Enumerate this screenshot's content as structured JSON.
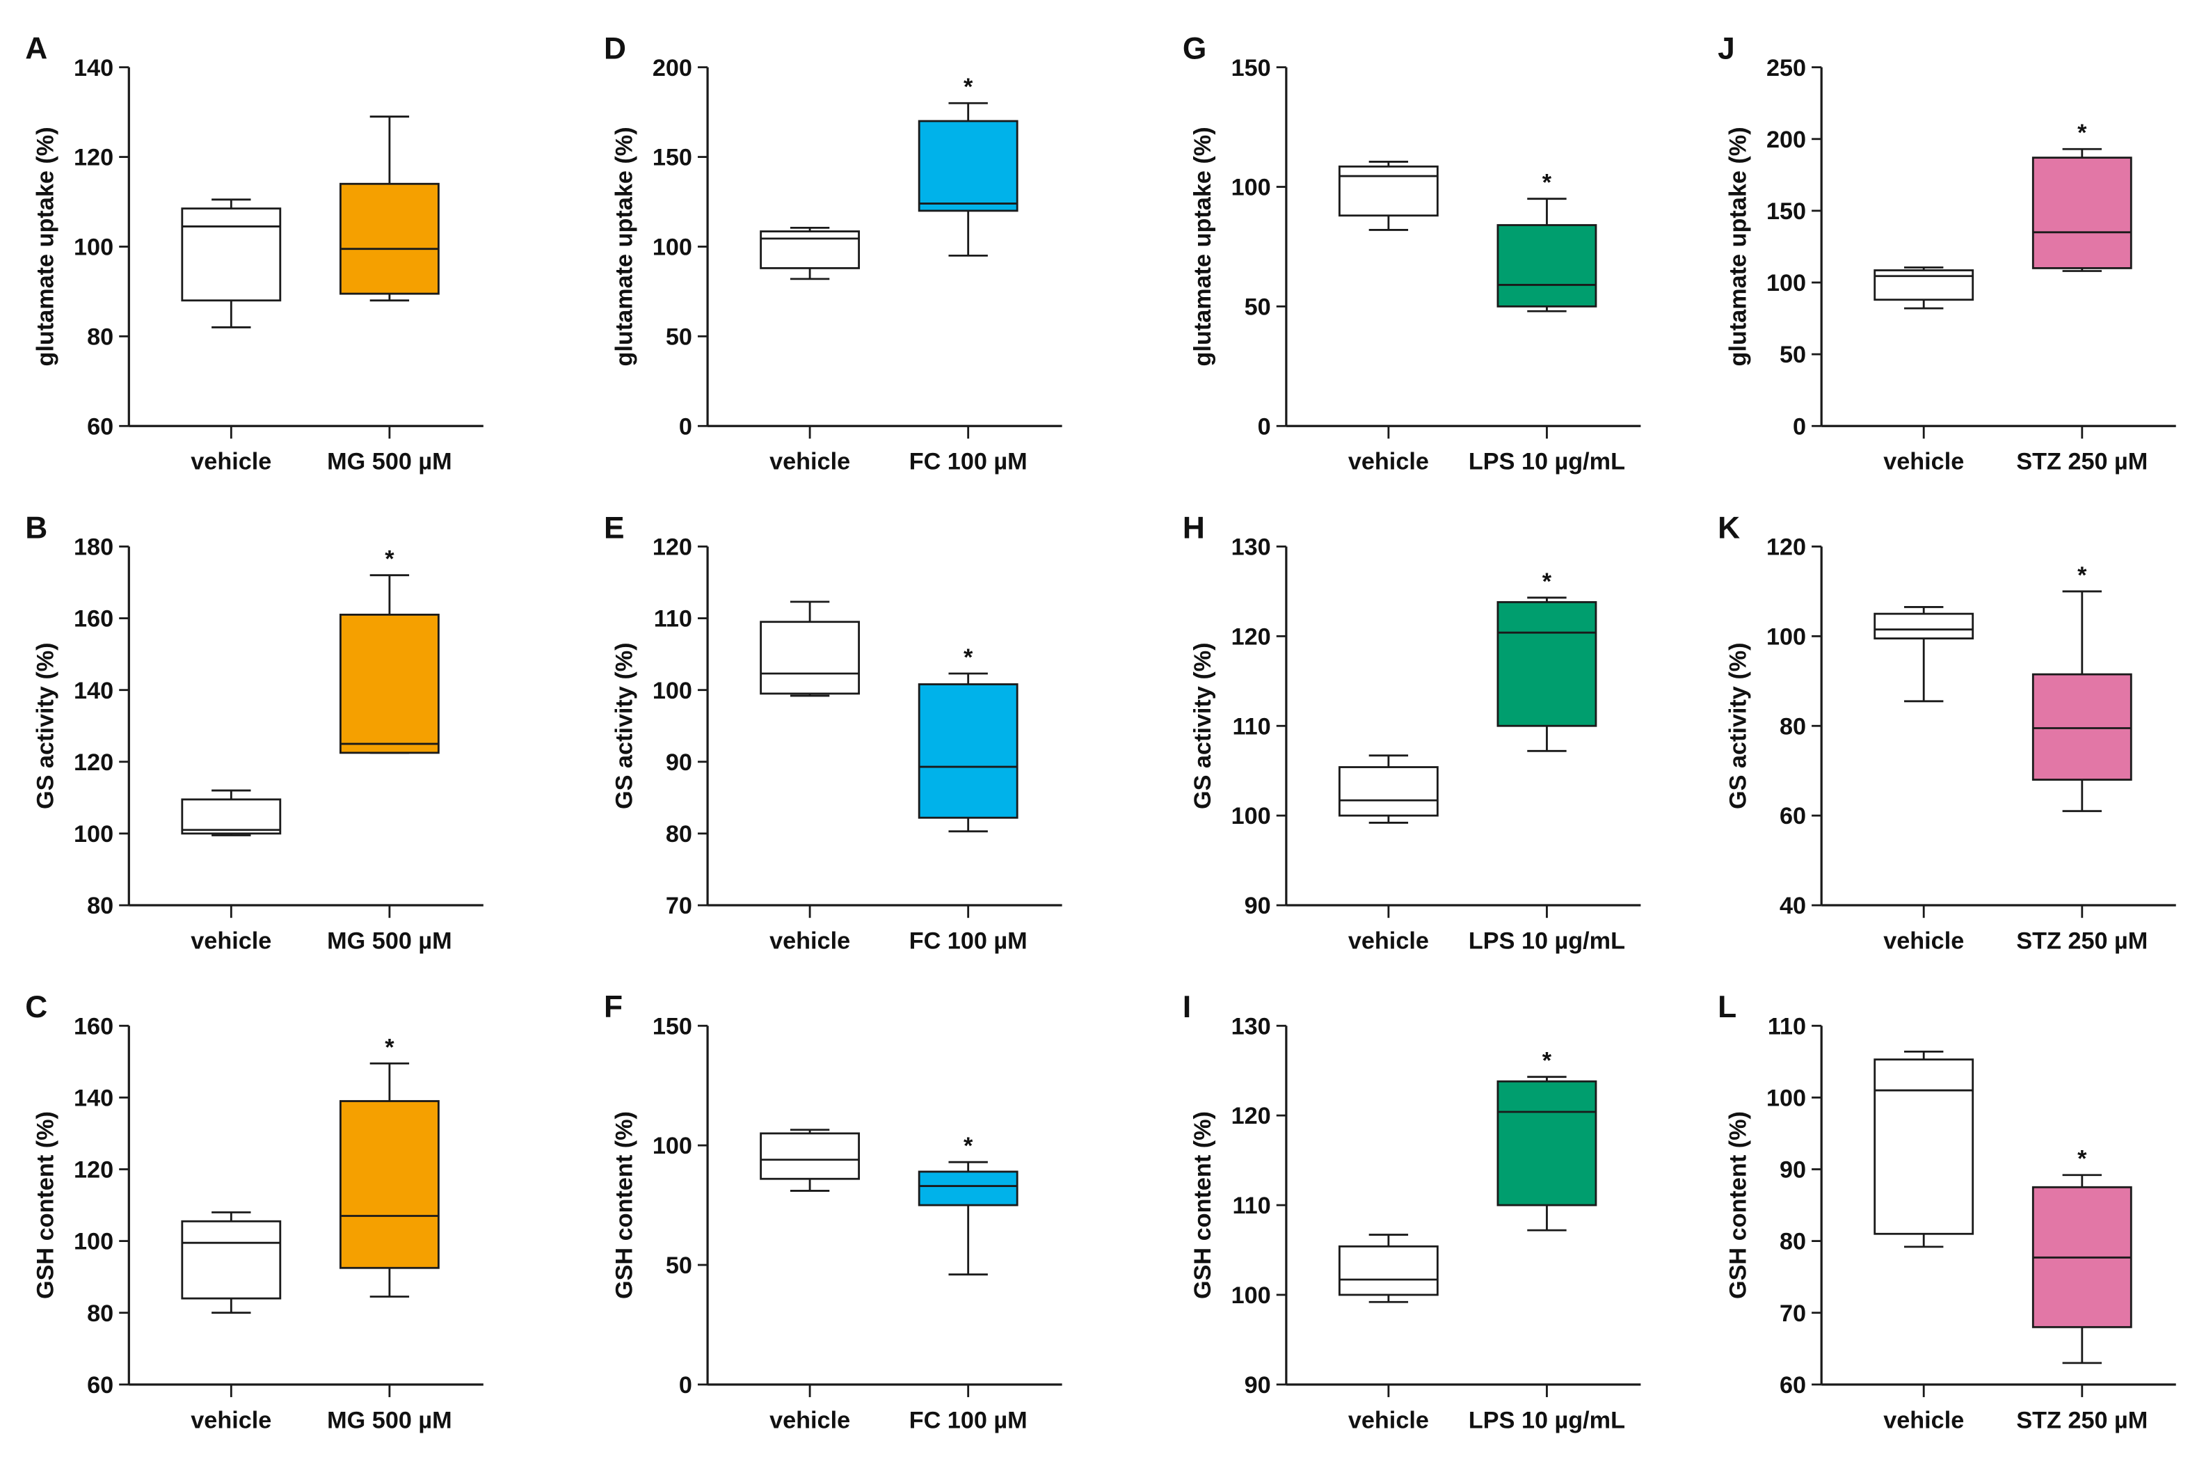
{
  "colors": {
    "MG": "#F5A000",
    "FC": "#00B2EA",
    "LPS": "#009E6E",
    "STZ": "#E277A6",
    "vehicle": "#FFFFFF",
    "line": "#1a1a1a"
  },
  "chart_data": [
    {
      "panel": "A",
      "type": "box",
      "ylabel": "glutamate uptake (%)",
      "ylim": [
        60,
        140
      ],
      "ticks": [
        60,
        80,
        100,
        120,
        140
      ],
      "categories": [
        "vehicle",
        "MG 500 µM"
      ],
      "color_key": "MG",
      "series": [
        {
          "name": "vehicle",
          "min": 82,
          "q1": 88,
          "median": 104.5,
          "q3": 108.5,
          "max": 110.5,
          "star": false
        },
        {
          "name": "MG 500 µM",
          "min": 88,
          "q1": 89.5,
          "median": 99.5,
          "q3": 114,
          "max": 129,
          "star": false
        }
      ]
    },
    {
      "panel": "B",
      "type": "box",
      "ylabel": "GS activity (%)",
      "ylim": [
        80,
        180
      ],
      "ticks": [
        80,
        100,
        120,
        140,
        160,
        180
      ],
      "categories": [
        "vehicle",
        "MG 500 µM"
      ],
      "color_key": "MG",
      "series": [
        {
          "name": "vehicle",
          "min": 99.5,
          "q1": 100,
          "median": 101,
          "q3": 109.5,
          "max": 112,
          "star": false
        },
        {
          "name": "MG 500 µM",
          "min": 122.5,
          "q1": 122.5,
          "median": 125,
          "q3": 161,
          "max": 172,
          "star": true
        }
      ]
    },
    {
      "panel": "C",
      "type": "box",
      "ylabel": "GSH content (%)",
      "ylim": [
        60,
        160
      ],
      "ticks": [
        60,
        80,
        100,
        120,
        140,
        160
      ],
      "categories": [
        "vehicle",
        "MG 500 µM"
      ],
      "color_key": "MG",
      "series": [
        {
          "name": "vehicle",
          "min": 80,
          "q1": 84,
          "median": 99.5,
          "q3": 105.5,
          "max": 108,
          "star": false
        },
        {
          "name": "MG 500 µM",
          "min": 84.5,
          "q1": 92.5,
          "median": 107,
          "q3": 139,
          "max": 149.5,
          "star": true
        }
      ]
    },
    {
      "panel": "D",
      "type": "box",
      "ylabel": "glutamate uptake (%)",
      "ylim": [
        0,
        200
      ],
      "ticks": [
        0,
        50,
        100,
        150,
        200
      ],
      "categories": [
        "vehicle",
        "FC 100 µM"
      ],
      "color_key": "FC",
      "series": [
        {
          "name": "vehicle",
          "min": 82,
          "q1": 88,
          "median": 104.5,
          "q3": 108.5,
          "max": 110.5,
          "star": false
        },
        {
          "name": "FC 100 µM",
          "min": 95,
          "q1": 120,
          "median": 124,
          "q3": 170,
          "max": 180,
          "star": true
        }
      ]
    },
    {
      "panel": "E",
      "type": "box",
      "ylabel": "GS activity (%)",
      "ylim": [
        70,
        120
      ],
      "ticks": [
        70,
        80,
        90,
        100,
        110,
        120
      ],
      "categories": [
        "vehicle",
        "FC 100 µM"
      ],
      "color_key": "FC",
      "series": [
        {
          "name": "vehicle",
          "min": 99.2,
          "q1": 99.5,
          "median": 102.3,
          "q3": 109.5,
          "max": 112.3,
          "star": false
        },
        {
          "name": "FC 100 µM",
          "min": 80.3,
          "q1": 82.2,
          "median": 89.3,
          "q3": 100.8,
          "max": 102.3,
          "star": true
        }
      ]
    },
    {
      "panel": "F",
      "type": "box",
      "ylabel": "GSH content (%)",
      "ylim": [
        0,
        150
      ],
      "ticks": [
        0,
        50,
        100,
        150
      ],
      "categories": [
        "vehicle",
        "FC 100 µM"
      ],
      "color_key": "FC",
      "series": [
        {
          "name": "vehicle",
          "min": 81,
          "q1": 86,
          "median": 94,
          "q3": 105,
          "max": 106.5,
          "star": false
        },
        {
          "name": "FC 100 µM",
          "min": 46,
          "q1": 75,
          "median": 83,
          "q3": 89,
          "max": 93,
          "star": true
        }
      ]
    },
    {
      "panel": "G",
      "type": "box",
      "ylabel": "glutamate uptake (%)",
      "ylim": [
        0,
        150
      ],
      "ticks": [
        0,
        50,
        100,
        150
      ],
      "categories": [
        "vehicle",
        "LPS 10 µg/mL"
      ],
      "color_key": "LPS",
      "series": [
        {
          "name": "vehicle",
          "min": 82,
          "q1": 88,
          "median": 104.5,
          "q3": 108.5,
          "max": 110.5,
          "star": false
        },
        {
          "name": "LPS 10 µg/mL",
          "min": 48,
          "q1": 50,
          "median": 59,
          "q3": 84,
          "max": 95,
          "star": true
        }
      ]
    },
    {
      "panel": "H",
      "type": "box",
      "ylabel": "GS activity (%)",
      "ylim": [
        90,
        130
      ],
      "ticks": [
        90,
        100,
        110,
        120,
        130
      ],
      "categories": [
        "vehicle",
        "LPS 10 µg/mL"
      ],
      "color_key": "LPS",
      "series": [
        {
          "name": "vehicle",
          "min": 99.2,
          "q1": 100,
          "median": 101.7,
          "q3": 105.4,
          "max": 106.7,
          "star": false
        },
        {
          "name": "LPS 10 µg/mL",
          "min": 107.2,
          "q1": 110,
          "median": 120.4,
          "q3": 123.8,
          "max": 124.3,
          "star": true
        }
      ]
    },
    {
      "panel": "I",
      "type": "box",
      "ylabel": "GSH content (%)",
      "ylim": [
        90,
        130
      ],
      "ticks": [
        90,
        100,
        110,
        120,
        130
      ],
      "categories": [
        "vehicle",
        "LPS 10 µg/mL"
      ],
      "color_key": "LPS",
      "series": [
        {
          "name": "vehicle",
          "min": 99.2,
          "q1": 100,
          "median": 101.7,
          "q3": 105.4,
          "max": 106.7,
          "star": false
        },
        {
          "name": "LPS 10 µg/mL",
          "min": 107.2,
          "q1": 110,
          "median": 120.4,
          "q3": 123.8,
          "max": 124.3,
          "star": true
        }
      ]
    },
    {
      "panel": "J",
      "type": "box",
      "ylabel": "glutamate uptake (%)",
      "ylim": [
        0,
        250
      ],
      "ticks": [
        0,
        50,
        100,
        150,
        200,
        250
      ],
      "categories": [
        "vehicle",
        "STZ 250 µM"
      ],
      "color_key": "STZ",
      "series": [
        {
          "name": "vehicle",
          "min": 82,
          "q1": 88,
          "median": 104.5,
          "q3": 108.5,
          "max": 110.5,
          "star": false
        },
        {
          "name": "STZ 250 µM",
          "min": 108,
          "q1": 110,
          "median": 135,
          "q3": 187,
          "max": 193,
          "star": true
        }
      ]
    },
    {
      "panel": "K",
      "type": "box",
      "ylabel": "GS activity (%)",
      "ylim": [
        40,
        120
      ],
      "ticks": [
        40,
        60,
        80,
        100,
        120
      ],
      "categories": [
        "vehicle",
        "STZ 250 µM"
      ],
      "color_key": "STZ",
      "series": [
        {
          "name": "vehicle",
          "min": 85.5,
          "q1": 99.5,
          "median": 101.5,
          "q3": 105,
          "max": 106.5,
          "star": false
        },
        {
          "name": "STZ 250 µM",
          "min": 61,
          "q1": 68,
          "median": 79.5,
          "q3": 91.5,
          "max": 110,
          "star": true
        }
      ]
    },
    {
      "panel": "L",
      "type": "box",
      "ylabel": "GSH content (%)",
      "ylim": [
        60,
        110
      ],
      "ticks": [
        60,
        70,
        80,
        90,
        100,
        110
      ],
      "categories": [
        "vehicle",
        "STZ 250 µM"
      ],
      "color_key": "STZ",
      "series": [
        {
          "name": "vehicle",
          "min": 79.2,
          "q1": 81,
          "median": 101,
          "q3": 105.3,
          "max": 106.4,
          "star": false
        },
        {
          "name": "STZ 250 µM",
          "min": 63,
          "q1": 68,
          "median": 77.7,
          "q3": 87.5,
          "max": 89.2,
          "star": true
        }
      ]
    }
  ],
  "significance_marker": "*"
}
